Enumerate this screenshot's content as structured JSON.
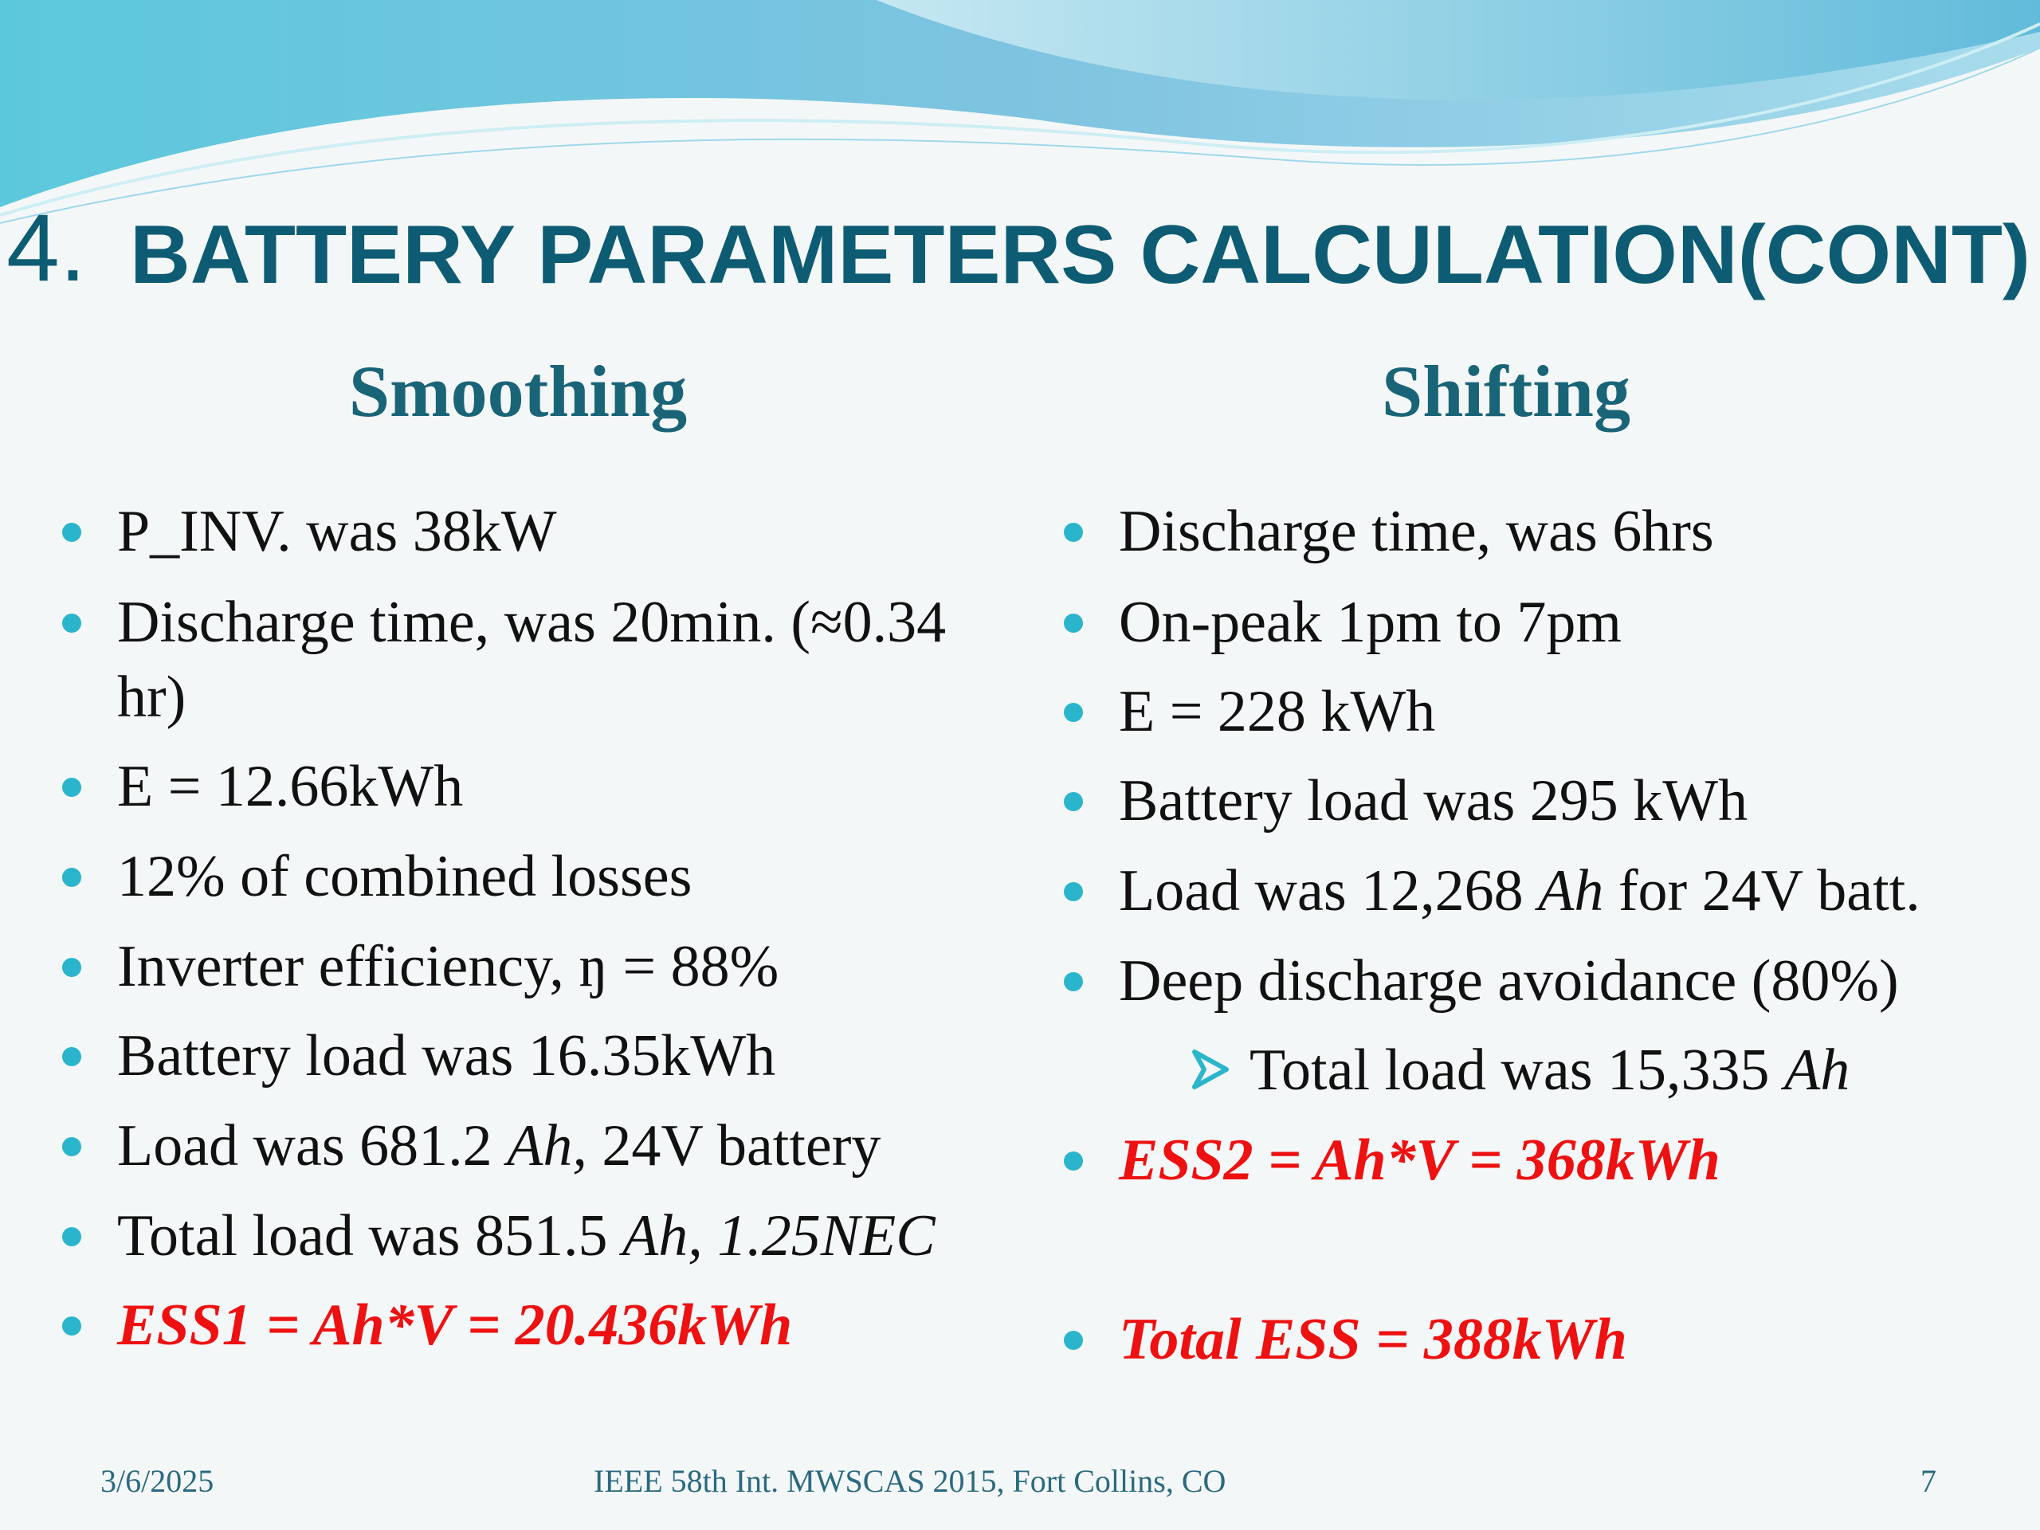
{
  "title": {
    "number": "4.",
    "text": "BATTERY PARAMETERS CALCULATION(CONT)"
  },
  "columns": [
    {
      "heading": "Smoothing",
      "items": [
        "P_INV. was 38kW",
        "Discharge time, was 20min. (≈0.34 hr)",
        "E = 12.66kWh",
        "12% of combined losses",
        "Inverter efficiency, ŋ = 88%",
        "Battery load was 16.35kWh",
        [
          "Load was 681.2 ",
          "Ah,",
          " 24V battery"
        ],
        [
          "Total load was 851.5 ",
          "Ah, 1.25NEC"
        ],
        "ESS1 = Ah*V = 20.436kWh"
      ]
    },
    {
      "heading": "Shifting",
      "items": [
        "Discharge time, was 6hrs",
        "On-peak 1pm to 7pm",
        "E = 228 kWh",
        "Battery load was 295 kWh",
        [
          "Load was 12,268 ",
          "Ah",
          " for 24V batt."
        ],
        "Deep discharge avoidance (80%)",
        [
          "Total load was 15,335 ",
          "Ah"
        ],
        "ESS2 = Ah*V = 368kWh",
        "Total ESS = 388kWh"
      ]
    }
  ],
  "footer": {
    "date": "3/6/2025",
    "center": "IEEE 58th Int. MWSCAS 2015, Fort Collins, CO",
    "page": "7"
  }
}
